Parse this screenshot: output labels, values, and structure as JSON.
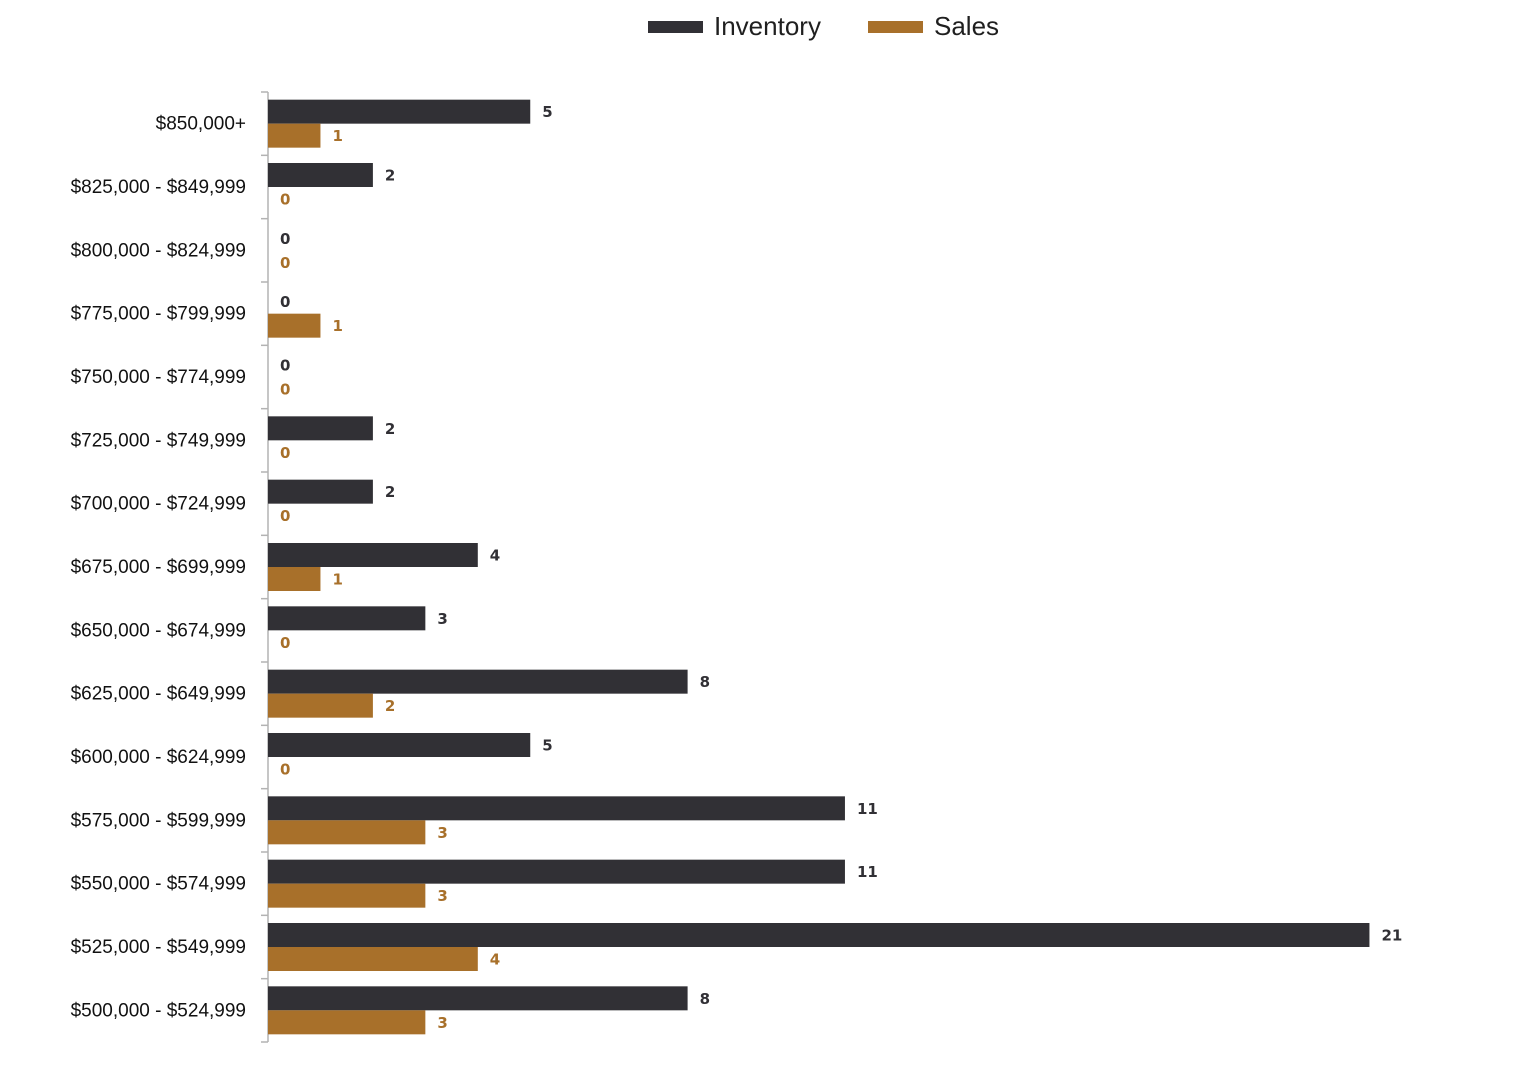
{
  "chart_data": {
    "type": "bar",
    "orientation": "horizontal",
    "categories": [
      "$850,000+",
      "$825,000 - $849,999",
      "$800,000 - $824,999",
      "$775,000 - $799,999",
      "$750,000 - $774,999",
      "$725,000 - $749,999",
      "$700,000 - $724,999",
      "$675,000 - $699,999",
      "$650,000 - $674,999",
      "$625,000 - $649,999",
      "$600,000 - $624,999",
      "$575,000 - $599,999",
      "$550,000 - $574,999",
      "$525,000 - $549,999",
      "$500,000 - $524,999"
    ],
    "series": [
      {
        "name": "Inventory",
        "color": "#313035",
        "values": [
          5,
          2,
          0,
          0,
          0,
          2,
          2,
          4,
          3,
          8,
          5,
          11,
          11,
          21,
          8
        ]
      },
      {
        "name": "Sales",
        "color": "#a8702a",
        "values": [
          1,
          0,
          0,
          1,
          0,
          0,
          0,
          1,
          0,
          2,
          0,
          3,
          3,
          4,
          3
        ]
      }
    ],
    "title": "",
    "xlabel": "",
    "ylabel": "",
    "xlim": [
      0,
      21
    ],
    "grid": false,
    "legend_position": "top-center",
    "data_labels": true
  }
}
